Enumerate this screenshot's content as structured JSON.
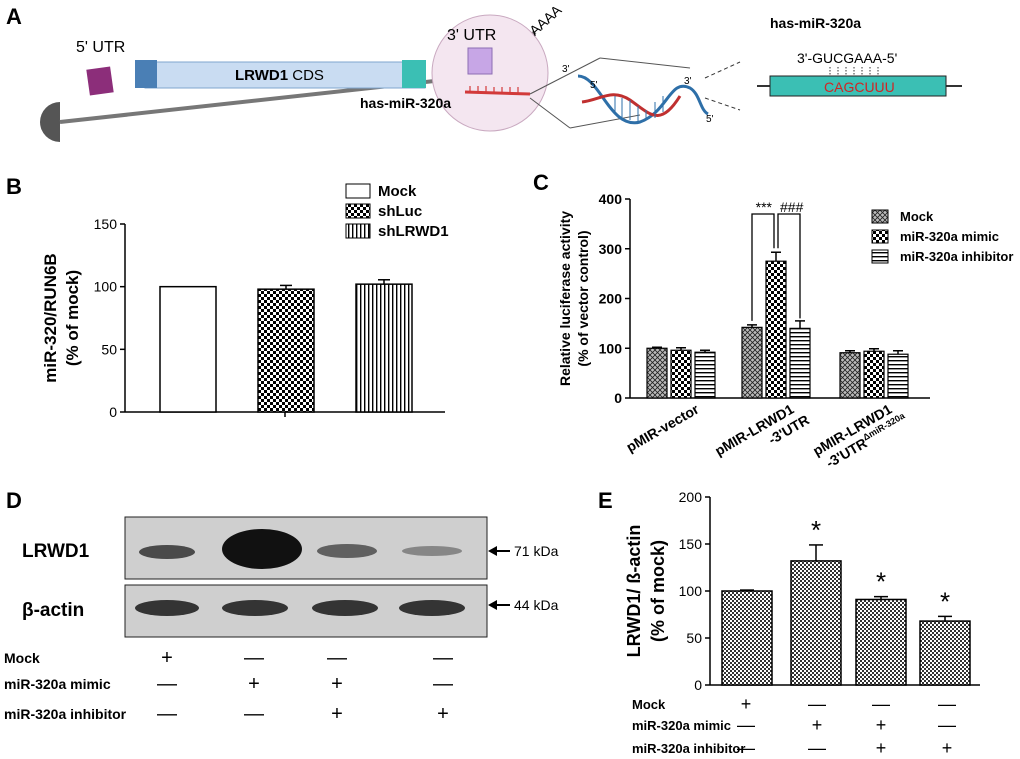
{
  "panel_a": {
    "letter": "A",
    "utr5": "5' UTR",
    "cds_bold": "LRWD1",
    "cds_rest": " CDS",
    "utr3": "3' UTR",
    "polya": "AAAA",
    "mirna_label": "has-miR-320a",
    "mirna_title": "has-miR-320a",
    "seed_seq": "3'-GUCGAAA-5'",
    "target_seq": "CAGCUUU",
    "end3a": "3'",
    "end5a": "5'",
    "end3b": "3'",
    "end5b": "5'",
    "colors": {
      "cds": "#c9dcf2",
      "cds_left": "#4a7fb5",
      "cds_right": "#3bbfb4",
      "utr5_box": "#8c2e7a",
      "utr3_box": "#c7a6e6",
      "target_box": "#3bbfb4",
      "target_text": "#d02525",
      "circle": "#f4e6f0"
    }
  },
  "chart_data": [
    {
      "panel": "B",
      "type": "bar",
      "ylabel_line1": "miR-320/RUN6B",
      "ylabel_line2": "(% of mock)",
      "ylim": [
        0,
        150
      ],
      "yticks": [
        "0",
        "50",
        "100",
        "150"
      ],
      "series": [
        {
          "name": "Mock",
          "value": 100,
          "error": 0
        },
        {
          "name": "shLuc",
          "value": 98,
          "error": 3
        },
        {
          "name": "shLRWD1",
          "value": 102,
          "error": 3.5
        }
      ]
    },
    {
      "panel": "C",
      "type": "bar",
      "ylabel_line1": "Relative luciferase activity",
      "ylabel_line2": "(% of vector control)",
      "ylim": [
        0,
        400
      ],
      "yticks": [
        "0",
        "100",
        "200",
        "300",
        "400"
      ],
      "categories": [
        {
          "line1": "pMIR-vector",
          "line2": "",
          "sup": ""
        },
        {
          "line1": "pMIR-LRWD1",
          "line2": "-3'UTR",
          "sup": ""
        },
        {
          "line1": "pMIR-LRWD1",
          "line2": "-3'UTR",
          "sup": "ΔmiR-320a"
        }
      ],
      "series": [
        {
          "name": "Mock",
          "values": [
            100,
            142,
            91
          ],
          "errors": [
            2,
            5,
            4
          ]
        },
        {
          "name": "miR-320a mimic",
          "values": [
            96,
            275,
            94
          ],
          "errors": [
            5,
            18,
            5
          ]
        },
        {
          "name": "miR-320a inhibitor",
          "values": [
            92,
            140,
            88
          ],
          "errors": [
            4,
            15,
            7
          ]
        }
      ],
      "annotations": {
        "sig1": "***",
        "sig2": "###"
      }
    },
    {
      "panel": "E",
      "type": "bar",
      "ylabel_line1": "LRWD1/ ß-actin",
      "ylabel_line2": "(% of mock)",
      "ylim": [
        0,
        200
      ],
      "yticks": [
        "0",
        "50",
        "100",
        "150",
        "200"
      ],
      "values": [
        100,
        132,
        91,
        68
      ],
      "errors": [
        1,
        17,
        3,
        5
      ],
      "stars": [
        "",
        "*",
        "*",
        "*"
      ]
    }
  ],
  "blot": {
    "letter": "D",
    "band1_label": "LRWD1",
    "band2_label": "β-actin",
    "mw1": "71 kDa",
    "mw2": "44 kDa"
  },
  "treatments": {
    "row_labels": [
      "Mock",
      "miR-320a mimic",
      "miR-320a inhibitor"
    ],
    "matrix": [
      [
        "+",
        "—",
        "—",
        "—"
      ],
      [
        "—",
        "+",
        "+",
        "—"
      ],
      [
        "—",
        "—",
        "+",
        "+"
      ]
    ]
  },
  "panel_letters": {
    "b": "B",
    "c": "C",
    "e": "E"
  }
}
